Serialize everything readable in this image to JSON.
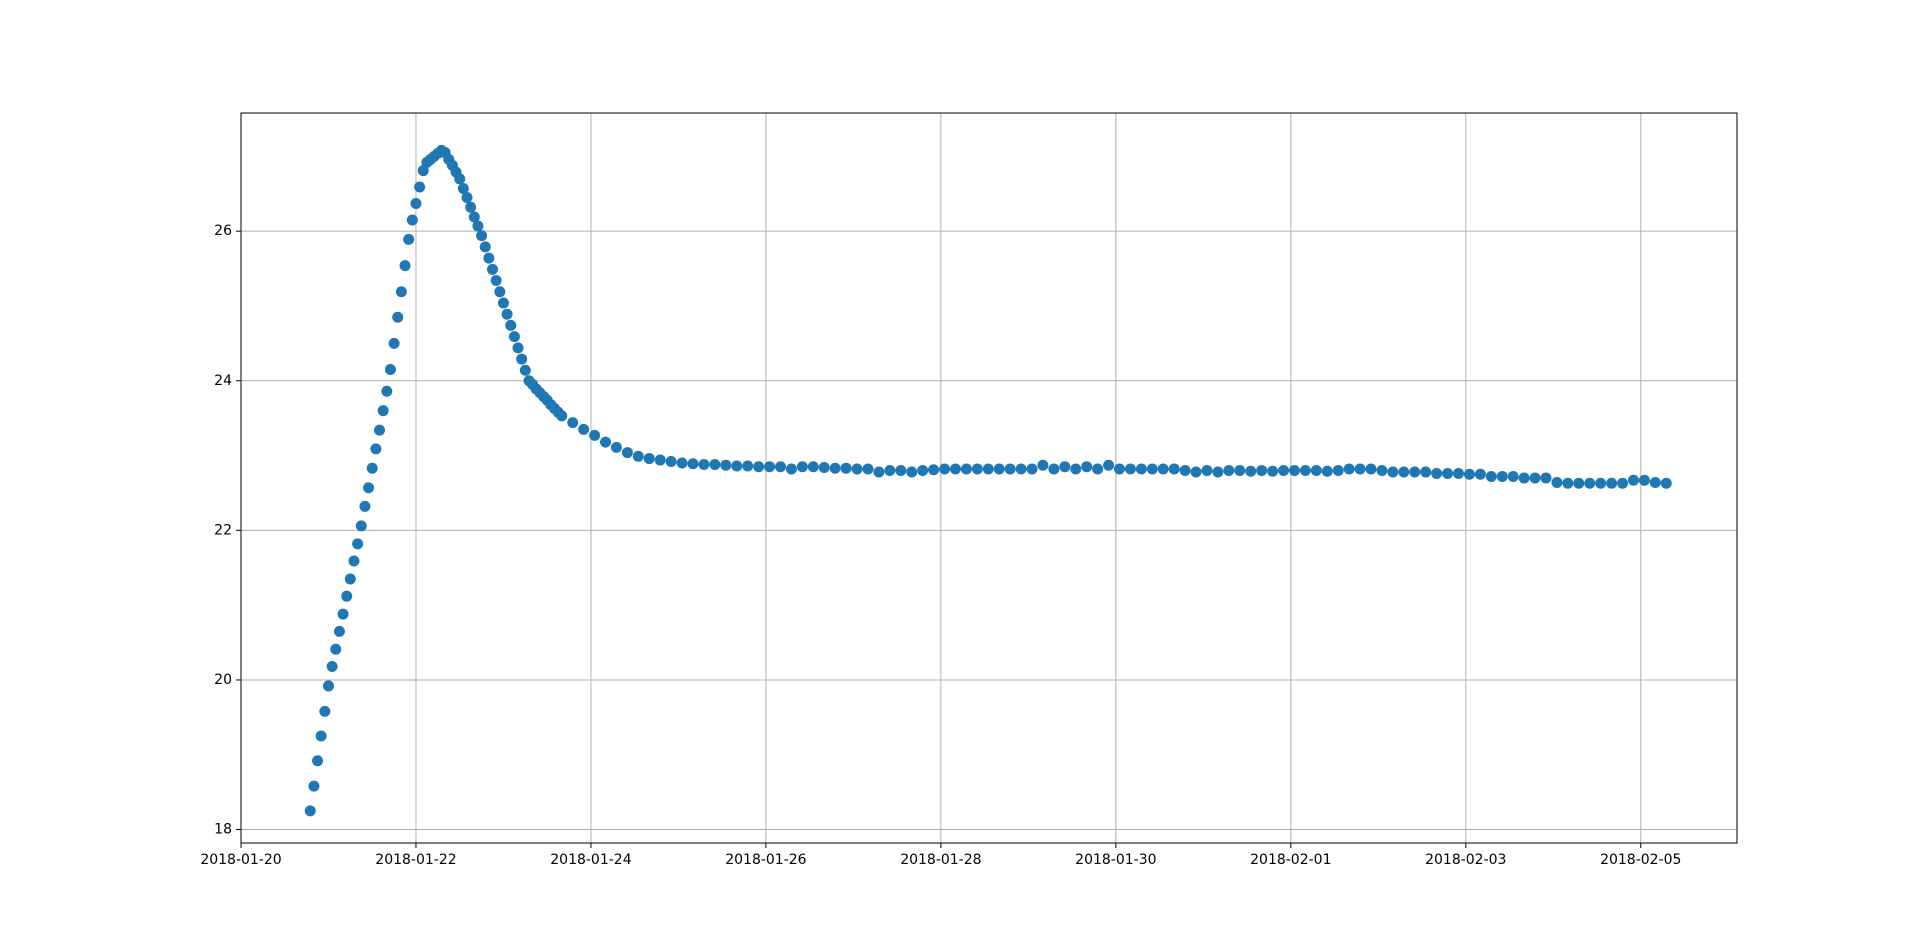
{
  "chart_data": {
    "type": "scatter",
    "color": "#1f77b4",
    "grid": true,
    "xlim": [
      "2018-01-20",
      "2018-02-06T02:24"
    ],
    "xticks": [
      "2018-01-20",
      "2018-01-22",
      "2018-01-24",
      "2018-01-26",
      "2018-01-28",
      "2018-01-30",
      "2018-02-01",
      "2018-02-03",
      "2018-02-05"
    ],
    "ylim": [
      17.82,
      27.58
    ],
    "yticks": [
      18,
      20,
      22,
      24,
      26
    ],
    "x": [
      "2018-01-20T19:00",
      "2018-01-20T20:00",
      "2018-01-20T21:00",
      "2018-01-20T22:00",
      "2018-01-20T23:00",
      "2018-01-21T00:00",
      "2018-01-21T01:00",
      "2018-01-21T02:00",
      "2018-01-21T03:00",
      "2018-01-21T04:00",
      "2018-01-21T05:00",
      "2018-01-21T06:00",
      "2018-01-21T07:00",
      "2018-01-21T08:00",
      "2018-01-21T09:00",
      "2018-01-21T10:00",
      "2018-01-21T11:00",
      "2018-01-21T12:00",
      "2018-01-21T13:00",
      "2018-01-21T14:00",
      "2018-01-21T15:00",
      "2018-01-21T16:00",
      "2018-01-21T17:00",
      "2018-01-21T18:00",
      "2018-01-21T19:00",
      "2018-01-21T20:00",
      "2018-01-21T21:00",
      "2018-01-21T22:00",
      "2018-01-21T23:00",
      "2018-01-22T00:00",
      "2018-01-22T01:00",
      "2018-01-22T02:00",
      "2018-01-22T03:00",
      "2018-01-22T04:00",
      "2018-01-22T05:00",
      "2018-01-22T06:00",
      "2018-01-22T07:00",
      "2018-01-22T08:00",
      "2018-01-22T09:00",
      "2018-01-22T10:00",
      "2018-01-22T11:00",
      "2018-01-22T12:00",
      "2018-01-22T13:00",
      "2018-01-22T14:00",
      "2018-01-22T15:00",
      "2018-01-22T16:00",
      "2018-01-22T17:00",
      "2018-01-22T18:00",
      "2018-01-22T19:00",
      "2018-01-22T20:00",
      "2018-01-22T21:00",
      "2018-01-22T22:00",
      "2018-01-22T23:00",
      "2018-01-23T00:00",
      "2018-01-23T01:00",
      "2018-01-23T02:00",
      "2018-01-23T03:00",
      "2018-01-23T04:00",
      "2018-01-23T05:00",
      "2018-01-23T06:00",
      "2018-01-23T07:00",
      "2018-01-23T08:00",
      "2018-01-23T09:00",
      "2018-01-23T10:00",
      "2018-01-23T11:00",
      "2018-01-23T12:00",
      "2018-01-23T13:00",
      "2018-01-23T14:00",
      "2018-01-23T15:00",
      "2018-01-23T16:00",
      "2018-01-23T19:00",
      "2018-01-23T22:00",
      "2018-01-24T01:00",
      "2018-01-24T04:00",
      "2018-01-24T07:00",
      "2018-01-24T10:00",
      "2018-01-24T13:00",
      "2018-01-24T16:00",
      "2018-01-24T19:00",
      "2018-01-24T22:00",
      "2018-01-25T01:00",
      "2018-01-25T04:00",
      "2018-01-25T07:00",
      "2018-01-25T10:00",
      "2018-01-25T13:00",
      "2018-01-25T16:00",
      "2018-01-25T19:00",
      "2018-01-25T22:00",
      "2018-01-26T01:00",
      "2018-01-26T04:00",
      "2018-01-26T07:00",
      "2018-01-26T10:00",
      "2018-01-26T13:00",
      "2018-01-26T16:00",
      "2018-01-26T19:00",
      "2018-01-26T22:00",
      "2018-01-27T01:00",
      "2018-01-27T04:00",
      "2018-01-27T07:00",
      "2018-01-27T10:00",
      "2018-01-27T13:00",
      "2018-01-27T16:00",
      "2018-01-27T19:00",
      "2018-01-27T22:00",
      "2018-01-28T01:00",
      "2018-01-28T04:00",
      "2018-01-28T07:00",
      "2018-01-28T10:00",
      "2018-01-28T13:00",
      "2018-01-28T16:00",
      "2018-01-28T19:00",
      "2018-01-28T22:00",
      "2018-01-29T01:00",
      "2018-01-29T04:00",
      "2018-01-29T07:00",
      "2018-01-29T10:00",
      "2018-01-29T13:00",
      "2018-01-29T16:00",
      "2018-01-29T19:00",
      "2018-01-29T22:00",
      "2018-01-30T01:00",
      "2018-01-30T04:00",
      "2018-01-30T07:00",
      "2018-01-30T10:00",
      "2018-01-30T13:00",
      "2018-01-30T16:00",
      "2018-01-30T19:00",
      "2018-01-30T22:00",
      "2018-01-31T01:00",
      "2018-01-31T04:00",
      "2018-01-31T07:00",
      "2018-01-31T10:00",
      "2018-01-31T13:00",
      "2018-01-31T16:00",
      "2018-01-31T19:00",
      "2018-01-31T22:00",
      "2018-02-01T01:00",
      "2018-02-01T04:00",
      "2018-02-01T07:00",
      "2018-02-01T10:00",
      "2018-02-01T13:00",
      "2018-02-01T16:00",
      "2018-02-01T19:00",
      "2018-02-01T22:00",
      "2018-02-02T01:00",
      "2018-02-02T04:00",
      "2018-02-02T07:00",
      "2018-02-02T10:00",
      "2018-02-02T13:00",
      "2018-02-02T16:00",
      "2018-02-02T19:00",
      "2018-02-02T22:00",
      "2018-02-03T01:00",
      "2018-02-03T04:00",
      "2018-02-03T07:00",
      "2018-02-03T10:00",
      "2018-02-03T13:00",
      "2018-02-03T16:00",
      "2018-02-03T19:00",
      "2018-02-03T22:00",
      "2018-02-04T01:00",
      "2018-02-04T04:00",
      "2018-02-04T07:00",
      "2018-02-04T10:00",
      "2018-02-04T13:00",
      "2018-02-04T16:00",
      "2018-02-04T19:00",
      "2018-02-04T22:00",
      "2018-02-05T01:00",
      "2018-02-05T04:00",
      "2018-02-05T07:00"
    ],
    "values": [
      18.25,
      18.58,
      18.92,
      19.25,
      19.58,
      19.92,
      20.18,
      20.41,
      20.65,
      20.88,
      21.12,
      21.35,
      21.59,
      21.82,
      22.06,
      22.32,
      22.57,
      22.83,
      23.09,
      23.34,
      23.6,
      23.86,
      24.15,
      24.5,
      24.85,
      25.19,
      25.54,
      25.89,
      26.15,
      26.37,
      26.59,
      26.81,
      26.92,
      26.96,
      27.0,
      27.04,
      27.08,
      27.05,
      26.96,
      26.88,
      26.79,
      26.7,
      26.57,
      26.45,
      26.32,
      26.19,
      26.07,
      25.94,
      25.79,
      25.64,
      25.49,
      25.34,
      25.19,
      25.04,
      24.89,
      24.74,
      24.59,
      24.44,
      24.29,
      24.14,
      24.0,
      23.95,
      23.89,
      23.84,
      23.79,
      23.74,
      23.68,
      23.63,
      23.58,
      23.53,
      23.44,
      23.35,
      23.27,
      23.18,
      23.11,
      23.04,
      22.99,
      22.96,
      22.94,
      22.92,
      22.9,
      22.89,
      22.88,
      22.88,
      22.87,
      22.86,
      22.86,
      22.85,
      22.85,
      22.85,
      22.82,
      22.85,
      22.85,
      22.84,
      22.83,
      22.83,
      22.82,
      22.82,
      22.78,
      22.8,
      22.8,
      22.78,
      22.8,
      22.81,
      22.82,
      22.82,
      22.82,
      22.82,
      22.82,
      22.82,
      22.82,
      22.82,
      22.82,
      22.87,
      22.82,
      22.85,
      22.82,
      22.85,
      22.82,
      22.87,
      22.82,
      22.82,
      22.82,
      22.82,
      22.82,
      22.82,
      22.8,
      22.78,
      22.8,
      22.78,
      22.8,
      22.8,
      22.79,
      22.8,
      22.79,
      22.8,
      22.8,
      22.8,
      22.8,
      22.79,
      22.8,
      22.82,
      22.82,
      22.82,
      22.8,
      22.78,
      22.78,
      22.78,
      22.78,
      22.76,
      22.76,
      22.76,
      22.75,
      22.75,
      22.72,
      22.72,
      22.72,
      22.7,
      22.7,
      22.7,
      22.64,
      22.63,
      22.63,
      22.63,
      22.63,
      22.63,
      22.63,
      22.67,
      22.67,
      22.64,
      22.63
    ]
  }
}
